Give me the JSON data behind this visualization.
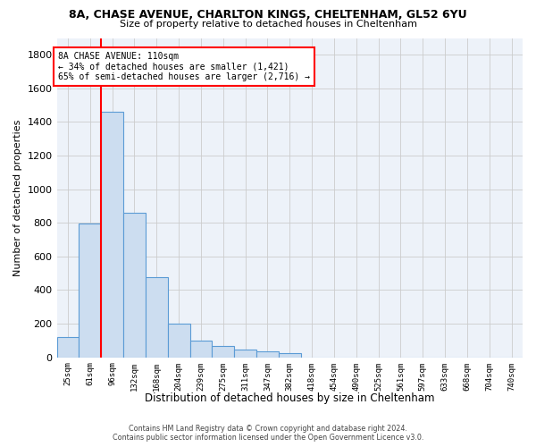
{
  "title1": "8A, CHASE AVENUE, CHARLTON KINGS, CHELTENHAM, GL52 6YU",
  "title2": "Size of property relative to detached houses in Cheltenham",
  "xlabel": "Distribution of detached houses by size in Cheltenham",
  "ylabel": "Number of detached properties",
  "footer1": "Contains HM Land Registry data © Crown copyright and database right 2024.",
  "footer2": "Contains public sector information licensed under the Open Government Licence v3.0.",
  "annotation_line1": "8A CHASE AVENUE: 110sqm",
  "annotation_line2": "← 34% of detached houses are smaller (1,421)",
  "annotation_line3": "65% of semi-detached houses are larger (2,716) →",
  "bin_labels": [
    "25sqm",
    "61sqm",
    "96sqm",
    "132sqm",
    "168sqm",
    "204sqm",
    "239sqm",
    "275sqm",
    "311sqm",
    "347sqm",
    "382sqm",
    "418sqm",
    "454sqm",
    "490sqm",
    "525sqm",
    "561sqm",
    "597sqm",
    "633sqm",
    "668sqm",
    "704sqm",
    "740sqm"
  ],
  "bar_heights": [
    120,
    795,
    1460,
    860,
    475,
    200,
    100,
    65,
    45,
    35,
    25,
    0,
    0,
    0,
    0,
    0,
    0,
    0,
    0,
    0,
    0
  ],
  "bar_color": "#ccddf0",
  "bar_edge_color": "#5b9bd5",
  "red_line_x": 1.5,
  "ylim": [
    0,
    1900
  ],
  "yticks": [
    0,
    200,
    400,
    600,
    800,
    1000,
    1200,
    1400,
    1600,
    1800
  ],
  "grid_color": "#cccccc",
  "bg_color": "#edf2f9"
}
